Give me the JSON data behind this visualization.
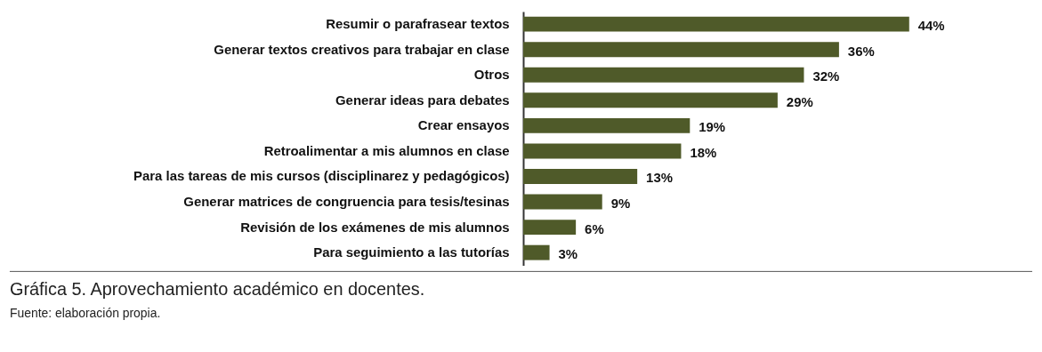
{
  "chart_data": {
    "type": "bar",
    "orientation": "horizontal",
    "title": "Gráfica 5. Aprovechamiento académico en docentes.",
    "annotations": [
      "Fuente: elaboración propia."
    ],
    "categories": [
      "Resumir o parafrasear textos",
      "Generar textos creativos para trabajar en clase",
      "Otros",
      "Generar ideas para debates",
      "Crear ensayos",
      "Retroalimentar a mis alumnos en clase",
      "Para las tareas de mis cursos (disciplinarez y pedagógicos)",
      "Generar matrices de congruencia para tesis/tesinas",
      "Revisión de los exámenes de mis alumnos",
      "Para seguimiento a las tutorías"
    ],
    "values": [
      44,
      36,
      32,
      29,
      19,
      18,
      13,
      9,
      6,
      3
    ],
    "value_labels": [
      "44%",
      "36%",
      "32%",
      "29%",
      "19%",
      "18%",
      "13%",
      "9%",
      "6%",
      "3%"
    ],
    "color": "#4f5a29",
    "grid": false
  }
}
